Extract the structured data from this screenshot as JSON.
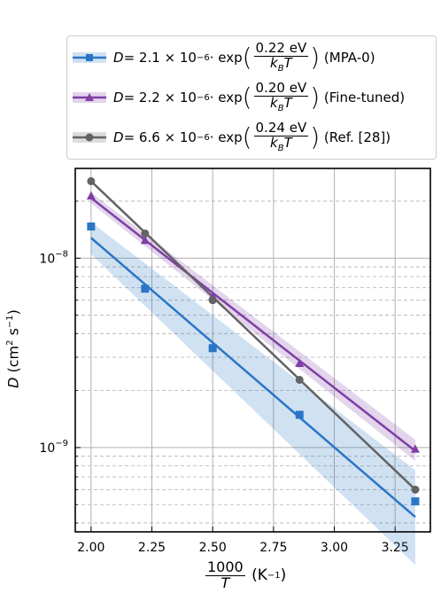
{
  "chart_data": {
    "type": "scatter",
    "xlim": [
      1.935,
      3.395
    ],
    "ylim_log10": [
      -9.445,
      -7.526
    ],
    "x_ticks": [
      2.0,
      2.25,
      2.5,
      2.75,
      3.0,
      3.25
    ],
    "x_tick_labels": [
      "2.00",
      "2.25",
      "2.50",
      "2.75",
      "3.00",
      "3.25"
    ],
    "y_major_ticks": [
      {
        "value": 1e-08,
        "mantissa": "10",
        "exp": "−8"
      },
      {
        "value": 1e-09,
        "mantissa": "10",
        "exp": "−9"
      }
    ],
    "y_minor_ticks": [
      4e-10,
      5e-10,
      6e-10,
      7e-10,
      8e-10,
      9e-10,
      2e-09,
      3e-09,
      4e-09,
      5e-09,
      6e-09,
      7e-09,
      8e-09,
      9e-09,
      2e-08
    ],
    "y_scale": "log",
    "xlabel": {
      "num": "1000",
      "den": "T",
      "unit": "(K",
      "unit_exp": "−1",
      "unit_close": ")"
    },
    "ylabel": {
      "sym": "D",
      "open": " (cm",
      "exp2": "2",
      "mid": " s",
      "exp1": "−1",
      "close": ")"
    },
    "grid": true,
    "legend_position": "top (above plot)",
    "series": [
      {
        "key": "mpa0",
        "color": "#2a75c6",
        "marker": "square",
        "x": [
          2.0,
          2.222,
          2.5,
          2.857,
          3.333
        ],
        "y": [
          1.47e-08,
          6.9e-09,
          3.35e-09,
          1.49e-09,
          5.2e-10
        ],
        "fit": {
          "x": [
            2.0,
            3.333
          ],
          "y": [
            1.28e-08,
            4.3e-10
          ]
        },
        "band_lower": {
          "x": [
            2.0,
            3.333
          ],
          "y": [
            1.05e-08,
            2.4e-10
          ]
        },
        "band_upper": {
          "x": [
            2.0,
            3.333
          ],
          "y": [
            1.55e-08,
            7.6e-10
          ]
        },
        "legend": {
          "lhs": "D",
          "coef": " = 2.1 × 10",
          "exp": "−6",
          "dot": " · exp",
          "num": "0.22 eV",
          "den": "k",
          "den_sub": "B",
          "den_tail": "T",
          "label": "(MPA-0)"
        }
      },
      {
        "key": "finetuned",
        "color": "#7e3fa6",
        "marker": "triangle",
        "x": [
          2.0,
          2.222,
          2.5,
          2.857,
          3.333
        ],
        "y": [
          2.13e-08,
          1.24e-08,
          6.3e-09,
          2.78e-09,
          9.8e-10
        ],
        "fit": {
          "x": [
            2.0,
            3.333
          ],
          "y": [
            2.08e-08,
            9.6e-10
          ]
        },
        "band_lower": {
          "x": [
            2.0,
            3.333
          ],
          "y": [
            1.95e-08,
            8.5e-10
          ]
        },
        "band_upper": {
          "x": [
            2.0,
            3.333
          ],
          "y": [
            2.22e-08,
            1.1e-09
          ]
        },
        "legend": {
          "lhs": "D",
          "coef": " = 2.2 × 10",
          "exp": "−6",
          "dot": " · exp",
          "num": "0.20 eV",
          "den": "k",
          "den_sub": "B",
          "den_tail": "T",
          "label": "(Fine-tuned)"
        }
      },
      {
        "key": "ref28",
        "color": "#636363",
        "marker": "circle",
        "x": [
          2.0,
          2.222,
          2.5,
          2.857,
          3.333
        ],
        "y": [
          2.55e-08,
          1.35e-08,
          6e-09,
          2.28e-09,
          6e-10
        ],
        "fit": {
          "x": [
            2.0,
            3.333
          ],
          "y": [
            2.55e-08,
            6e-10
          ]
        },
        "legend": {
          "lhs": "D",
          "coef": " = 6.6 × 10",
          "exp": "−6",
          "dot": " · exp",
          "num": "0.24 eV",
          "den": "k",
          "den_sub": "B",
          "den_tail": "T",
          "label": "(Ref. [28])"
        }
      }
    ]
  }
}
